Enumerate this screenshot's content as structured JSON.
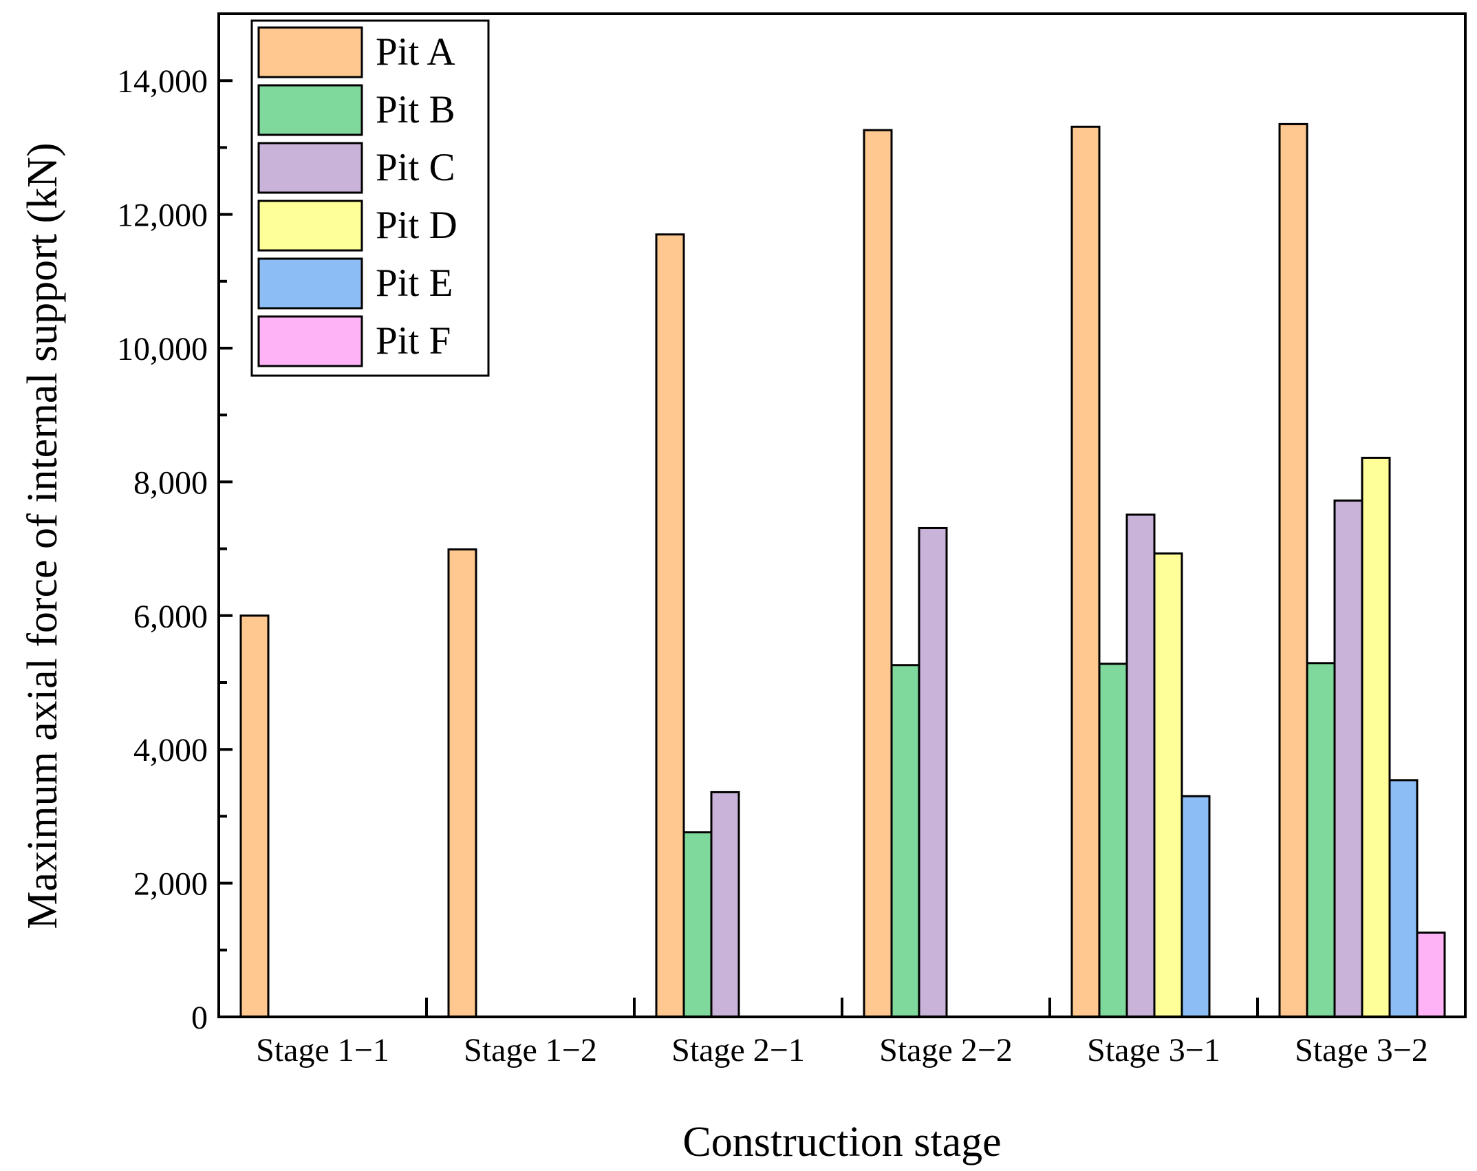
{
  "chart_data": {
    "type": "bar",
    "title": "",
    "xlabel": "Construction stage",
    "ylabel": "Maximum axial force of internal support (kN)",
    "ylim": [
      0,
      15000
    ],
    "yticks": [
      0,
      2000,
      4000,
      6000,
      8000,
      10000,
      12000,
      14000
    ],
    "ytick_labels": [
      "0",
      "2,000",
      "4,000",
      "6,000",
      "8,000",
      "10,000",
      "12,000",
      "14,000"
    ],
    "categories": [
      "Stage 1−1",
      "Stage 1−2",
      "Stage 2−1",
      "Stage 2−2",
      "Stage 3−1",
      "Stage 3−2"
    ],
    "legend_position": "top-left",
    "series": [
      {
        "name": "Pit A",
        "color": "#FFC891",
        "values": [
          6000,
          6990,
          11700,
          13260,
          13310,
          13350
        ]
      },
      {
        "name": "Pit B",
        "color": "#80D99C",
        "values": [
          null,
          null,
          2760,
          5260,
          5280,
          5290
        ]
      },
      {
        "name": "Pit C",
        "color": "#C9B3D9",
        "values": [
          null,
          null,
          3360,
          7310,
          7510,
          7720
        ]
      },
      {
        "name": "Pit D",
        "color": "#FFFF99",
        "values": [
          null,
          null,
          null,
          null,
          6930,
          8360
        ]
      },
      {
        "name": "Pit E",
        "color": "#8CBEF5",
        "values": [
          null,
          null,
          null,
          null,
          3300,
          3540
        ]
      },
      {
        "name": "Pit F",
        "color": "#FFB3F7",
        "values": [
          null,
          null,
          null,
          null,
          null,
          1260
        ]
      }
    ]
  }
}
